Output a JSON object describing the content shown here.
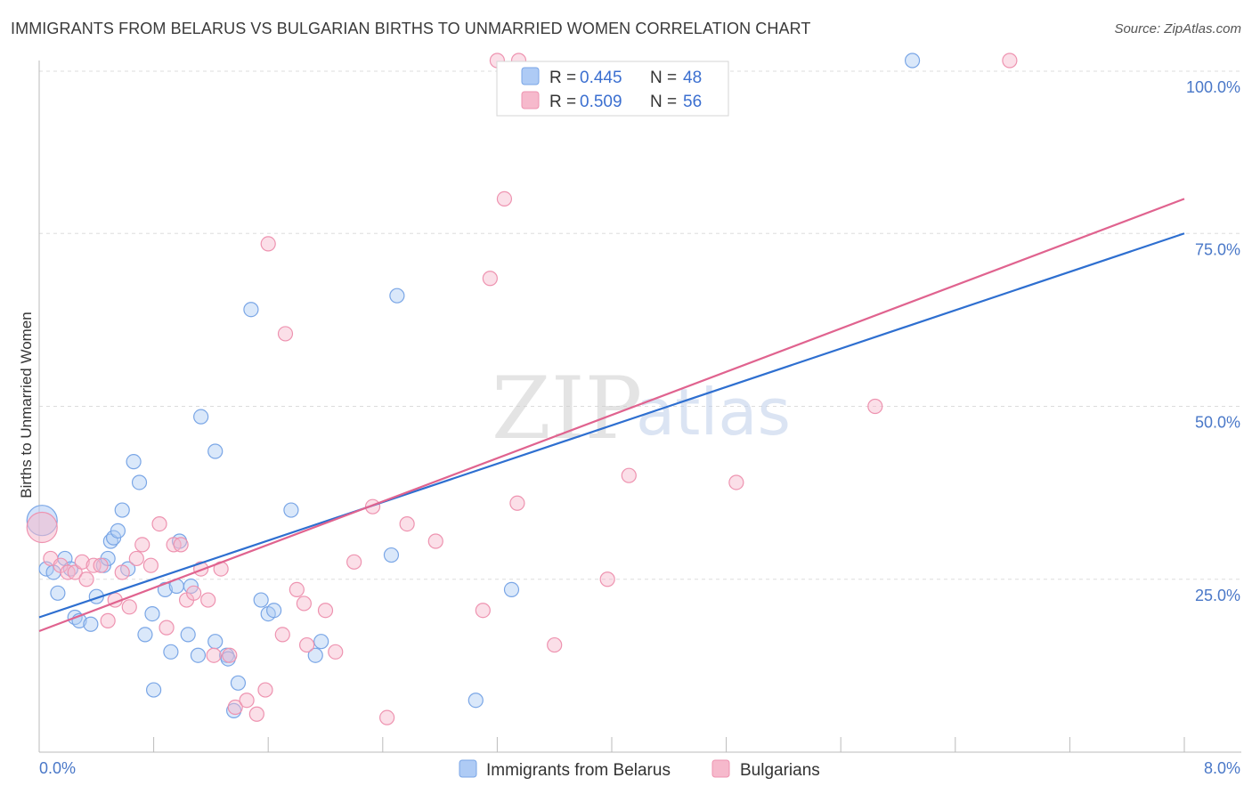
{
  "title": "IMMIGRANTS FROM BELARUS VS BULGARIAN BIRTHS TO UNMARRIED WOMEN CORRELATION CHART",
  "source": "Source: ZipAtlas.com",
  "watermark": {
    "zip": "ZIP",
    "atlas": "atlas"
  },
  "colors": {
    "blue_fill": "#aecbf5",
    "blue_stroke": "#7aa6e6",
    "blue_line": "#2e6fd0",
    "pink_fill": "#f6b9cc",
    "pink_stroke": "#ee93b0",
    "pink_line": "#e0638f",
    "tick_text": "#4a78c8",
    "grid": "#dddddd"
  },
  "chart_data": {
    "type": "scatter",
    "title": "IMMIGRANTS FROM BELARUS VS BULGARIAN BIRTHS TO UNMARRIED WOMEN CORRELATION CHART",
    "xlabel": "",
    "ylabel": "Births to Unmarried Women",
    "xlim": [
      0,
      8
    ],
    "ylim": [
      0,
      100
    ],
    "x_tick_labels": [
      "0.0%",
      "8.0%"
    ],
    "y_tick_values": [
      25,
      50,
      75,
      100
    ],
    "y_tick_labels": [
      "25.0%",
      "50.0%",
      "75.0%",
      "100.0%"
    ],
    "grid": true,
    "legend": {
      "position": "top-center",
      "entries": [
        {
          "r_label": "R =",
          "r": "0.445",
          "n_label": "N =",
          "n": "48"
        },
        {
          "r_label": "R =",
          "r": "0.509",
          "n_label": "N =",
          "n": "56"
        }
      ]
    },
    "series": [
      {
        "name": "Immigrants from Belarus",
        "color": "#aecbf5",
        "trend": {
          "x": [
            0,
            8
          ],
          "y": [
            19.5,
            75
          ]
        },
        "points": [
          {
            "x": 0.02,
            "y": 33.5,
            "s": "big"
          },
          {
            "x": 0.05,
            "y": 26.5
          },
          {
            "x": 0.1,
            "y": 26
          },
          {
            "x": 0.13,
            "y": 23
          },
          {
            "x": 0.18,
            "y": 28
          },
          {
            "x": 0.22,
            "y": 26.5
          },
          {
            "x": 0.25,
            "y": 19.5
          },
          {
            "x": 0.28,
            "y": 19
          },
          {
            "x": 0.36,
            "y": 18.5
          },
          {
            "x": 0.4,
            "y": 22.5
          },
          {
            "x": 0.45,
            "y": 27
          },
          {
            "x": 0.48,
            "y": 28
          },
          {
            "x": 0.5,
            "y": 30.5
          },
          {
            "x": 0.52,
            "y": 31
          },
          {
            "x": 0.55,
            "y": 32
          },
          {
            "x": 0.58,
            "y": 35
          },
          {
            "x": 0.62,
            "y": 26.5
          },
          {
            "x": 0.66,
            "y": 42
          },
          {
            "x": 0.7,
            "y": 39
          },
          {
            "x": 0.74,
            "y": 17
          },
          {
            "x": 0.79,
            "y": 20
          },
          {
            "x": 0.8,
            "y": 9
          },
          {
            "x": 0.88,
            "y": 23.5
          },
          {
            "x": 0.92,
            "y": 14.5
          },
          {
            "x": 0.96,
            "y": 24
          },
          {
            "x": 0.98,
            "y": 30.5
          },
          {
            "x": 1.04,
            "y": 17
          },
          {
            "x": 1.06,
            "y": 24
          },
          {
            "x": 1.11,
            "y": 14
          },
          {
            "x": 1.13,
            "y": 48.5
          },
          {
            "x": 1.23,
            "y": 43.5
          },
          {
            "x": 1.23,
            "y": 16
          },
          {
            "x": 1.31,
            "y": 14
          },
          {
            "x": 1.32,
            "y": 13.5
          },
          {
            "x": 1.36,
            "y": 6
          },
          {
            "x": 1.39,
            "y": 10
          },
          {
            "x": 1.48,
            "y": 64
          },
          {
            "x": 1.55,
            "y": 22
          },
          {
            "x": 1.6,
            "y": 20
          },
          {
            "x": 1.64,
            "y": 20.5
          },
          {
            "x": 1.76,
            "y": 35
          },
          {
            "x": 1.93,
            "y": 14
          },
          {
            "x": 1.97,
            "y": 16
          },
          {
            "x": 2.46,
            "y": 28.5
          },
          {
            "x": 2.5,
            "y": 66
          },
          {
            "x": 3.05,
            "y": 7.5
          },
          {
            "x": 3.3,
            "y": 23.5
          },
          {
            "x": 6.1,
            "y": 100
          }
        ]
      },
      {
        "name": "Bulgarians",
        "color": "#f6b9cc",
        "trend": {
          "x": [
            0,
            8
          ],
          "y": [
            17.5,
            80
          ]
        },
        "points": [
          {
            "x": 0.02,
            "y": 32.5,
            "s": "big"
          },
          {
            "x": 0.08,
            "y": 28
          },
          {
            "x": 0.15,
            "y": 27
          },
          {
            "x": 0.2,
            "y": 26
          },
          {
            "x": 0.25,
            "y": 26
          },
          {
            "x": 0.3,
            "y": 27.5
          },
          {
            "x": 0.33,
            "y": 25
          },
          {
            "x": 0.38,
            "y": 27
          },
          {
            "x": 0.43,
            "y": 27
          },
          {
            "x": 0.48,
            "y": 19
          },
          {
            "x": 0.53,
            "y": 22
          },
          {
            "x": 0.58,
            "y": 26
          },
          {
            "x": 0.63,
            "y": 21
          },
          {
            "x": 0.68,
            "y": 28
          },
          {
            "x": 0.72,
            "y": 30
          },
          {
            "x": 0.78,
            "y": 27
          },
          {
            "x": 0.84,
            "y": 33
          },
          {
            "x": 0.89,
            "y": 18
          },
          {
            "x": 0.94,
            "y": 30
          },
          {
            "x": 0.99,
            "y": 30
          },
          {
            "x": 1.03,
            "y": 22
          },
          {
            "x": 1.08,
            "y": 23
          },
          {
            "x": 1.13,
            "y": 26.5
          },
          {
            "x": 1.18,
            "y": 22
          },
          {
            "x": 1.22,
            "y": 14
          },
          {
            "x": 1.27,
            "y": 26.5
          },
          {
            "x": 1.33,
            "y": 14
          },
          {
            "x": 1.37,
            "y": 6.5
          },
          {
            "x": 1.45,
            "y": 7.5
          },
          {
            "x": 1.52,
            "y": 5.5
          },
          {
            "x": 1.58,
            "y": 9
          },
          {
            "x": 1.6,
            "y": 73.5
          },
          {
            "x": 1.7,
            "y": 17
          },
          {
            "x": 1.72,
            "y": 60.5
          },
          {
            "x": 1.8,
            "y": 23.5
          },
          {
            "x": 1.85,
            "y": 21.5
          },
          {
            "x": 1.87,
            "y": 15.5
          },
          {
            "x": 2.0,
            "y": 20.5
          },
          {
            "x": 2.07,
            "y": 14.5
          },
          {
            "x": 2.2,
            "y": 27.5
          },
          {
            "x": 2.33,
            "y": 35.5
          },
          {
            "x": 2.43,
            "y": 5
          },
          {
            "x": 2.57,
            "y": 33
          },
          {
            "x": 2.77,
            "y": 30.5
          },
          {
            "x": 3.1,
            "y": 20.5
          },
          {
            "x": 3.15,
            "y": 68.5
          },
          {
            "x": 3.2,
            "y": 100
          },
          {
            "x": 3.25,
            "y": 80
          },
          {
            "x": 3.34,
            "y": 36
          },
          {
            "x": 3.6,
            "y": 15.5
          },
          {
            "x": 3.97,
            "y": 25
          },
          {
            "x": 4.12,
            "y": 40
          },
          {
            "x": 4.87,
            "y": 39
          },
          {
            "x": 5.84,
            "y": 50
          },
          {
            "x": 6.78,
            "y": 100
          },
          {
            "x": 3.35,
            "y": 100
          }
        ]
      }
    ]
  },
  "bottom_legend": [
    {
      "label": "Immigrants from Belarus"
    },
    {
      "label": "Bulgarians"
    }
  ]
}
